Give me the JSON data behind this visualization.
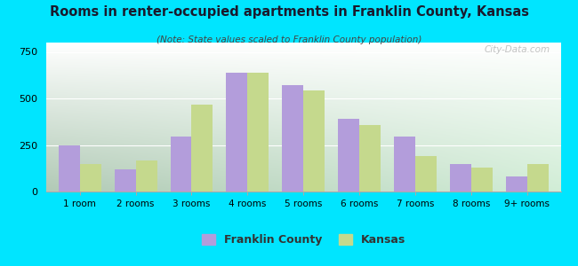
{
  "title": "Rooms in renter-occupied apartments in Franklin County, Kansas",
  "subtitle": "(Note: State values scaled to Franklin County population)",
  "categories": [
    "1 room",
    "2 rooms",
    "3 rooms",
    "4 rooms",
    "5 rooms",
    "6 rooms",
    "7 rooms",
    "8 rooms",
    "9+ rooms"
  ],
  "franklin_county": [
    248,
    120,
    295,
    640,
    570,
    390,
    295,
    148,
    80
  ],
  "kansas": [
    148,
    165,
    465,
    640,
    545,
    355,
    190,
    130,
    148
  ],
  "franklin_color": "#b39ddb",
  "kansas_color": "#c5d98d",
  "background_outer": "#00e5ff",
  "ylim": [
    0,
    800
  ],
  "yticks": [
    0,
    250,
    500,
    750
  ],
  "watermark": "City-Data.com",
  "legend_franklin": "Franklin County",
  "legend_kansas": "Kansas"
}
